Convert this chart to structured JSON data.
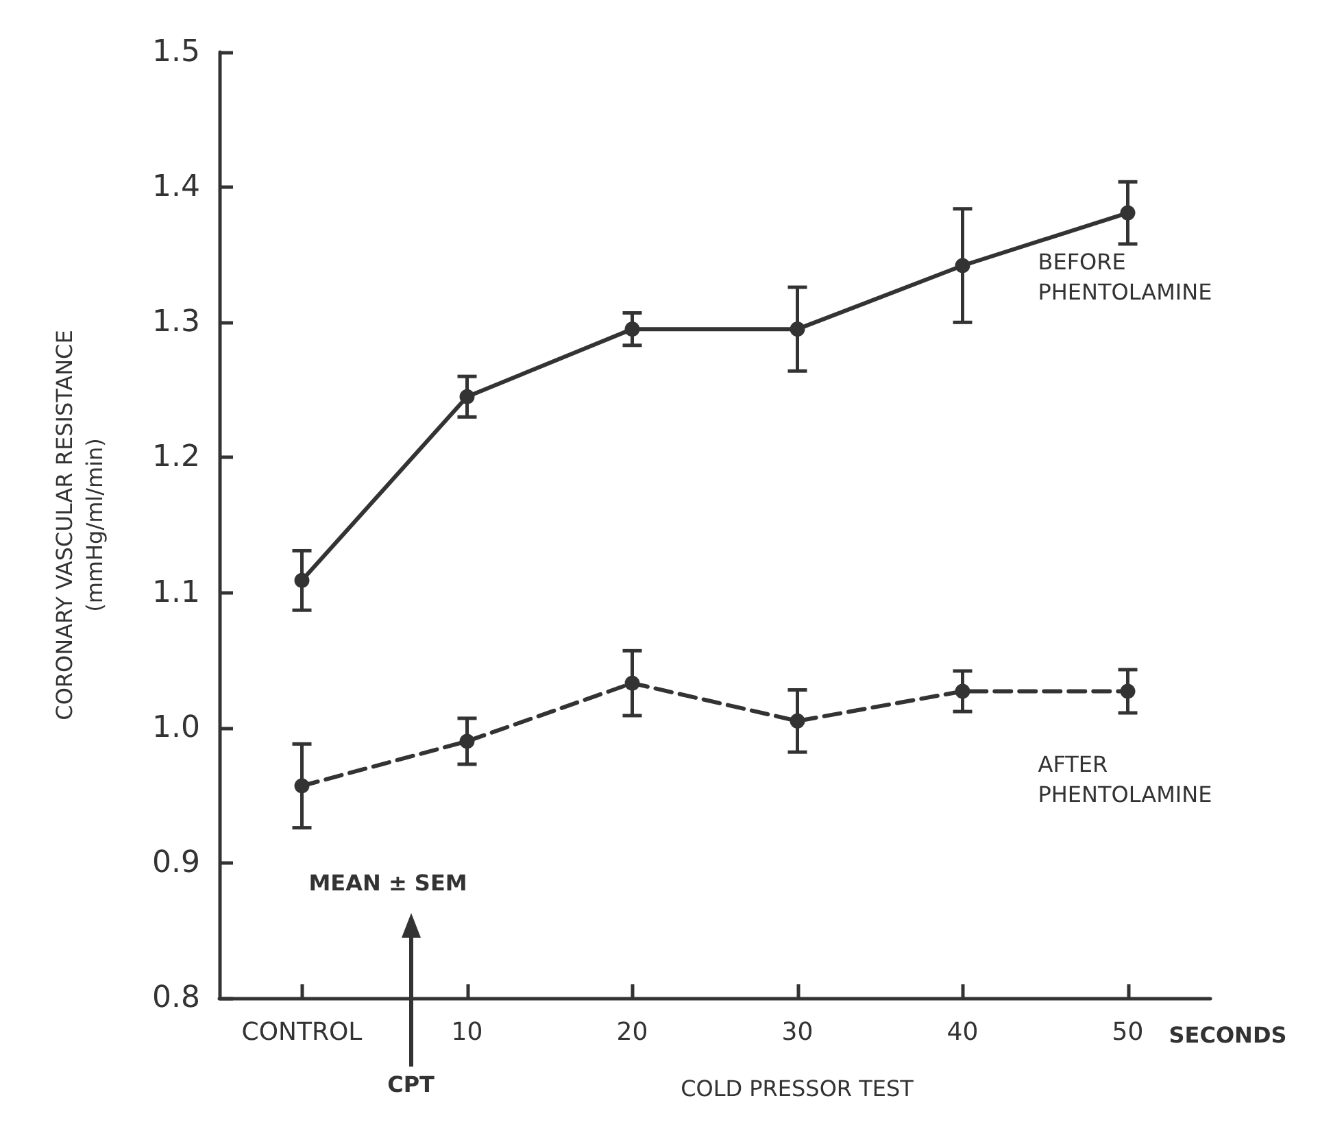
{
  "chart_data": {
    "type": "line",
    "xlabel": "COLD PRESSOR TEST",
    "ylabel": "CORONARY VASCULAR RESISTANCE\n(mmHg/ml/min)",
    "categories": [
      "CONTROL",
      "10",
      "20",
      "30",
      "40",
      "50"
    ],
    "series": [
      {
        "name": "BEFORE\nPHENTOLAMINE",
        "color": "#333333",
        "line_style": "solid",
        "values": [
          1.109,
          1.245,
          1.295,
          1.295,
          1.342,
          1.381
        ],
        "errors": [
          0.022,
          0.015,
          0.012,
          0.031,
          0.042,
          0.023
        ]
      },
      {
        "name": "AFTER\nPHENTOLAMINE",
        "color": "#333333",
        "line_style": "dashed",
        "values": [
          0.957,
          0.99,
          1.033,
          1.005,
          1.027,
          1.027
        ],
        "errors": [
          0.031,
          0.017,
          0.024,
          0.023,
          0.015,
          0.016
        ]
      }
    ],
    "ylim": [
      0.8,
      1.5
    ],
    "yticks": [
      {
        "value": 0.8,
        "label": "0.8"
      },
      {
        "value": 0.9,
        "label": "0.9"
      },
      {
        "value": 1,
        "label": "1.0"
      },
      {
        "value": 1.1,
        "label": "1.1"
      },
      {
        "value": 1.2,
        "label": "1.2"
      },
      {
        "value": 1.3,
        "label": "1.3"
      },
      {
        "value": 1.4,
        "label": "1.4"
      },
      {
        "value": 1.5,
        "label": "1.5"
      }
    ],
    "annotations": [
      "MEAN ± SEM",
      "CPT",
      "SECONDS"
    ],
    "marker": "circle",
    "legend": false,
    "grid": false
  }
}
